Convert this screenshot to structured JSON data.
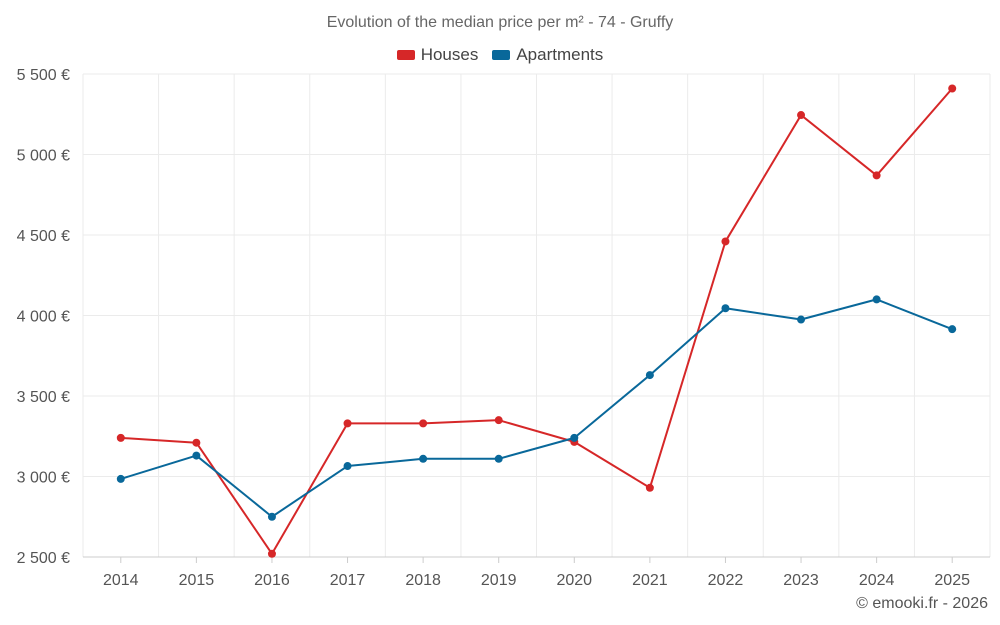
{
  "chart_data": {
    "type": "line",
    "title": "Evolution of the median price per m² - 74 - Gruffy",
    "categories": [
      "2014",
      "2015",
      "2016",
      "2017",
      "2018",
      "2019",
      "2020",
      "2021",
      "2022",
      "2023",
      "2024",
      "2025"
    ],
    "series": [
      {
        "name": "Houses",
        "color": "#d62728",
        "values": [
          3240,
          3210,
          2520,
          3330,
          3330,
          3350,
          3215,
          2930,
          4460,
          5245,
          4870,
          5410
        ]
      },
      {
        "name": "Apartments",
        "color": "#09689a",
        "values": [
          2985,
          3130,
          2750,
          3065,
          3110,
          3110,
          3240,
          3630,
          4045,
          3975,
          4100,
          3915
        ]
      }
    ],
    "ylim": [
      2500,
      5500
    ],
    "yticks": [
      2500,
      3000,
      3500,
      4000,
      4500,
      5000,
      5500
    ],
    "ytick_labels": [
      "2 500 €",
      "3 000 €",
      "3 500 €",
      "4 000 €",
      "4 500 €",
      "5 000 €",
      "5 500 €"
    ],
    "xlabel": "",
    "ylabel": "",
    "grid": true,
    "legend_position": "top-center"
  },
  "credit": "© emooki.fr - 2026"
}
